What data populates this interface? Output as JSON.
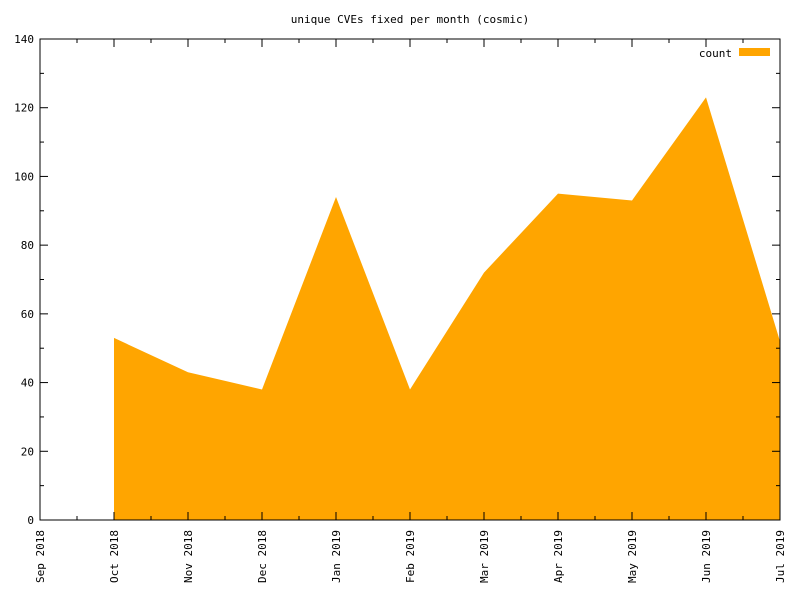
{
  "chart_data": {
    "type": "area",
    "title": "unique CVEs fixed per month (cosmic)",
    "xlabel": "",
    "ylabel": "",
    "x": [
      "Oct 2018",
      "Nov 2018",
      "Dec 2018",
      "Jan 2019",
      "Feb 2019",
      "Mar 2019",
      "Apr 2019",
      "May 2019",
      "Jun 2019",
      "Jul 2019"
    ],
    "x_ticks": [
      "Sep 2018",
      "Oct 2018",
      "Nov 2018",
      "Dec 2018",
      "Jan 2019",
      "Feb 2019",
      "Mar 2019",
      "Apr 2019",
      "May 2019",
      "Jun 2019",
      "Jul 2019"
    ],
    "series": [
      {
        "name": "count",
        "color": "#ffa500",
        "values": [
          53,
          43,
          38,
          94,
          38,
          72,
          95,
          93,
          123,
          52
        ]
      }
    ],
    "ylim": [
      0,
      140
    ],
    "y_ticks": [
      0,
      20,
      40,
      60,
      80,
      100,
      120,
      140
    ],
    "grid": false,
    "legend_position": "top-right"
  }
}
